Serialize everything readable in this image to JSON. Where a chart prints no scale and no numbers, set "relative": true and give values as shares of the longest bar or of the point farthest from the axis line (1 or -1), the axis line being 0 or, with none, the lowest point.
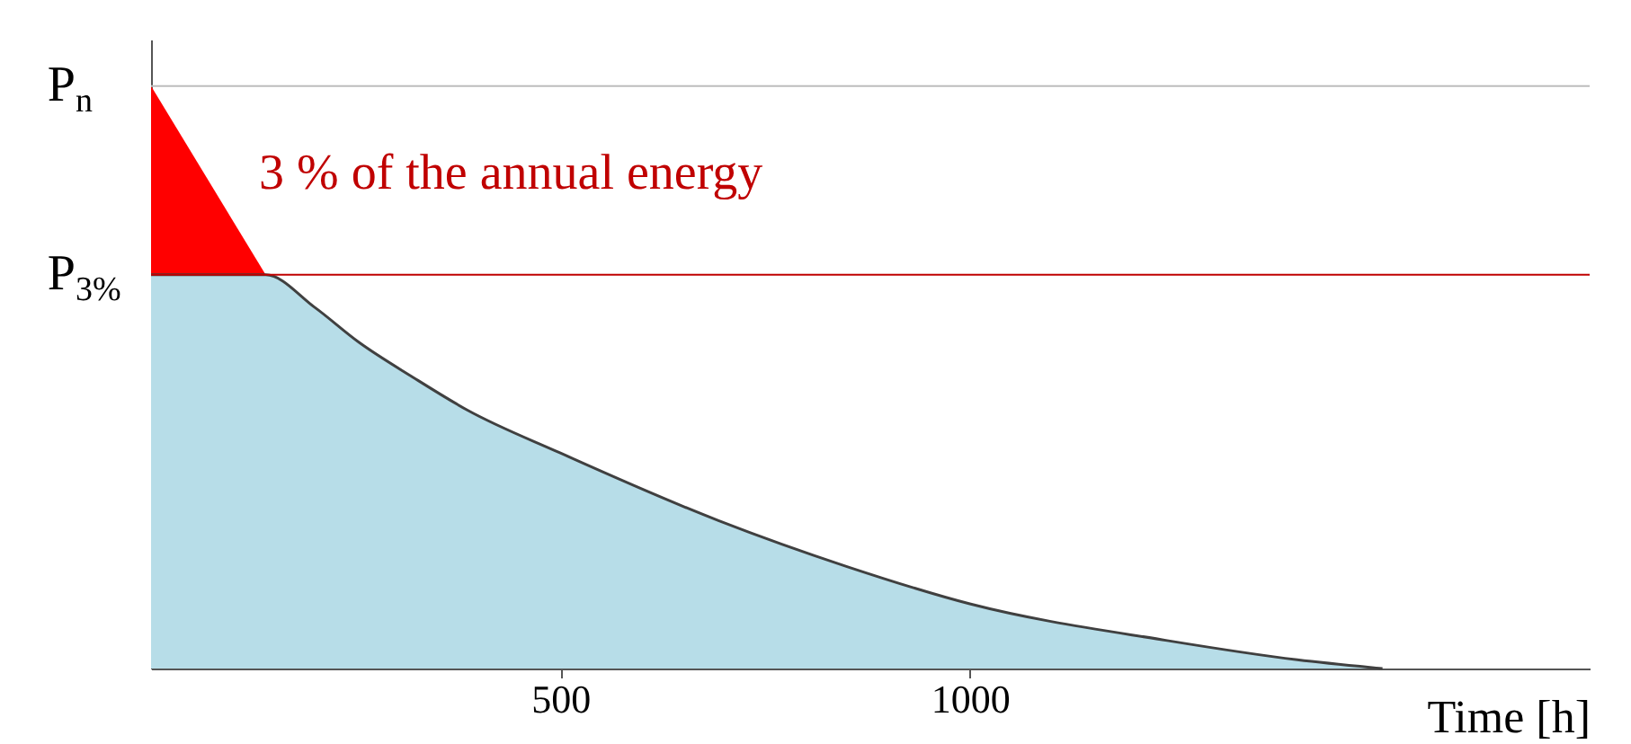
{
  "chart_data": {
    "type": "area",
    "relative": true,
    "xlabel": "Time [h]",
    "xlim": [
      0,
      1757
    ],
    "xticks": [
      500,
      1000
    ],
    "annotations": [
      "3 % of the annual energy"
    ],
    "ref_lines": [
      {
        "axis": "y",
        "value": 1,
        "label": "P$_{n}$",
        "color": "#bdbdbd"
      },
      {
        "axis": "y",
        "value": 0.676,
        "label": "P$_{3%}$",
        "color": "#c00000"
      }
    ],
    "series": [
      {
        "color": "#ff0000",
        "x": [
          0,
          140
        ],
        "values": [
          1,
          0.676
        ]
      },
      {
        "color": "#b7dde8",
        "x": [
          0,
          140,
          200,
          254,
          320,
          386,
          500,
          693,
          850,
          1000,
          1241,
          1400,
          1504
        ],
        "values": [
          0.676,
          0.676,
          0.62,
          0.56,
          0.5,
          0.444,
          0.37,
          0.254,
          0.175,
          0.111,
          0.048,
          0.015,
          0
        ]
      }
    ]
  }
}
